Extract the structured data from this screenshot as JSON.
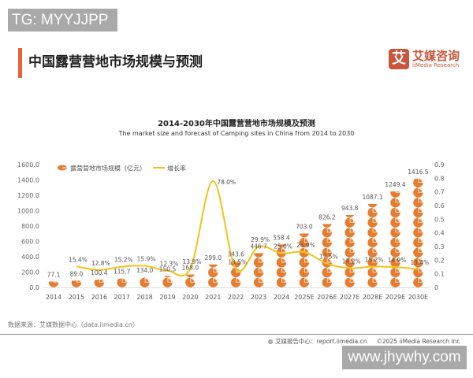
{
  "watermark_top": "TG: MYYJJPP",
  "page_heading": "中国露营营地市场规模与预测",
  "logo": {
    "cn": "艾媒咨询",
    "en": "iiMedia Research",
    "mark": "艾"
  },
  "source": "数据来源：艾媒数据中心（data.iimedia.cn）",
  "footer": {
    "report": "艾媒报告中心：report.iimedia.cn",
    "copyright": "©2025  iiMedia Research  Inc"
  },
  "watermark_bottom": "www.jhywhy.com",
  "colors": {
    "bar": "#e57c2f",
    "line": "#f2c31a",
    "accent": "#e8623a",
    "brand": "#c9563a"
  },
  "chart_data": {
    "type": "bar+line",
    "title": "2014-2030年中国露营营地市场规模及预测",
    "subtitle": "The market size and forecast of Camping sites in China from 2014 to 2030",
    "categories": [
      "2014",
      "2015",
      "2016",
      "2017",
      "2018",
      "2019",
      "2020",
      "2021",
      "2022",
      "2023",
      "2024",
      "2025E",
      "2026E",
      "2027E",
      "2028E",
      "2029E",
      "2030E"
    ],
    "series": [
      {
        "name": "露营营地市场规模（亿元）",
        "type": "pictorial-bar",
        "axis": "left",
        "values": [
          77.1,
          89.0,
          100.4,
          115.7,
          134.0,
          150.5,
          168.0,
          299.0,
          343.6,
          446.7,
          558.4,
          703.0,
          826.2,
          943.8,
          1087.1,
          1249.4,
          1416.5
        ],
        "labels": [
          "77.1",
          "89.0",
          "100.4",
          "115.7",
          "134.0",
          "150.5",
          "168.0",
          "299.0",
          "343.6",
          "446.7",
          "558.4",
          "703.0",
          "826.2",
          "943.8",
          "1087.1",
          "1249.4",
          "1416.5"
        ]
      },
      {
        "name": "增长率",
        "type": "line",
        "axis": "right",
        "values": [
          null,
          0.154,
          0.128,
          0.152,
          0.159,
          0.123,
          0.139,
          0.78,
          0.135,
          0.299,
          0.25,
          0.259,
          0.175,
          0.142,
          0.152,
          0.149,
          0.134
        ],
        "labels": [
          "",
          "15.4%",
          "12.8%",
          "15.2%",
          "15.9%",
          "12.3%",
          "13.9%",
          "78.0%",
          "13.5%",
          "29.9%",
          "25.0%",
          "25.9%",
          "17.5%",
          "14.2%",
          "15.2%",
          "14.9%",
          "13.4%"
        ]
      }
    ],
    "y_left": {
      "range": [
        0,
        1600
      ],
      "ticks": [
        "0.0",
        "200.0",
        "400.0",
        "600.0",
        "800.0",
        "1000.0",
        "1200.0",
        "1400.0",
        "1600.0"
      ]
    },
    "y_right": {
      "range": [
        0,
        0.9
      ],
      "ticks": [
        "0",
        "0.1",
        "0.2",
        "0.3",
        "0.4",
        "0.5",
        "0.6",
        "0.7",
        "0.8",
        "0.9"
      ]
    },
    "grid": false,
    "legend": "top-left"
  }
}
